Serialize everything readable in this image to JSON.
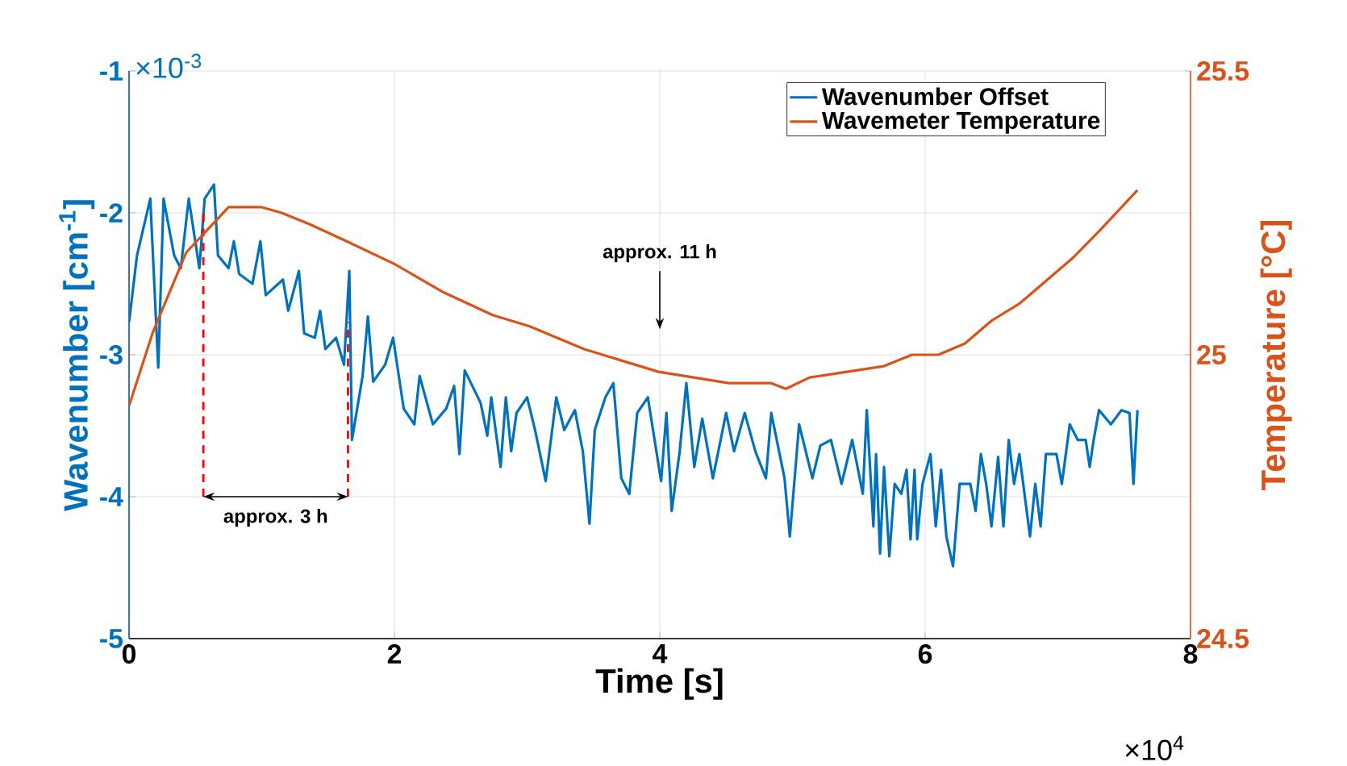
{
  "chart_data": {
    "type": "line",
    "xlabel": "Time [s]",
    "ylabel": "Wavenumber [cm$^{-1}$]",
    "y2label": "Temperature [°C]",
    "xlim": [
      0,
      8
    ],
    "xticks": [
      0,
      2,
      4,
      6,
      8
    ],
    "ylim": [
      -5,
      -1
    ],
    "yticks": [
      -5,
      -4,
      -3,
      -2,
      -1
    ],
    "y2lim": [
      24.5,
      25.5
    ],
    "y2ticks": [
      24.5,
      25,
      25.5
    ],
    "grid": true,
    "legend": "top right",
    "annotations": [
      "×10$^{-3}$",
      "×10$^{4}$",
      "approx. 11 h",
      "approx. 3 h"
    ],
    "series": [
      {
        "name": "Wavenumber Offset",
        "color": "#0072bd",
        "x": [
          0,
          0.06,
          0.16,
          0.22,
          0.26,
          0.34,
          0.39,
          0.45,
          0.53,
          0.57,
          0.64,
          0.67,
          0.75,
          0.79,
          0.83,
          0.93,
          0.99,
          1.03,
          1.16,
          1.2,
          1.28,
          1.32,
          1.4,
          1.44,
          1.48,
          1.56,
          1.62,
          1.66,
          1.68,
          1.76,
          1.8,
          1.84,
          1.93,
          1.99,
          2.07,
          2.15,
          2.19,
          2.29,
          2.39,
          2.45,
          2.49,
          2.53,
          2.65,
          2.7,
          2.73,
          2.8,
          2.84,
          2.88,
          2.92,
          3.0,
          3.06,
          3.14,
          3.22,
          3.28,
          3.36,
          3.42,
          3.47,
          3.51,
          3.59,
          3.65,
          3.71,
          3.77,
          3.83,
          3.91,
          4.01,
          4.05,
          4.09,
          4.15,
          4.2,
          4.26,
          4.32,
          4.4,
          4.5,
          4.56,
          4.64,
          4.72,
          4.8,
          4.84,
          4.94,
          4.98,
          5.05,
          5.15,
          5.21,
          5.29,
          5.37,
          5.45,
          5.53,
          5.56,
          5.61,
          5.63,
          5.66,
          5.69,
          5.73,
          5.77,
          5.82,
          5.86,
          5.89,
          5.92,
          5.94,
          5.98,
          6.04,
          6.08,
          6.12,
          6.16,
          6.21,
          6.26,
          6.34,
          6.38,
          6.42,
          6.46,
          6.5,
          6.55,
          6.59,
          6.63,
          6.67,
          6.71,
          6.79,
          6.83,
          6.87,
          6.91,
          6.99,
          7.03,
          7.09,
          7.15,
          7.21,
          7.24,
          7.27,
          7.31,
          7.4,
          7.48,
          7.54,
          7.57,
          7.6
        ],
        "values": [
          -2.77,
          -2.3,
          -1.9,
          -3.09,
          -1.9,
          -2.3,
          -2.39,
          -1.9,
          -2.39,
          -1.9,
          -1.8,
          -2.3,
          -2.39,
          -2.2,
          -2.43,
          -2.5,
          -2.2,
          -2.58,
          -2.47,
          -2.69,
          -2.41,
          -2.85,
          -2.88,
          -2.69,
          -2.96,
          -2.88,
          -3.07,
          -2.41,
          -3.6,
          -3.15,
          -2.73,
          -3.19,
          -3.07,
          -2.88,
          -3.38,
          -3.49,
          -3.15,
          -3.49,
          -3.38,
          -3.22,
          -3.7,
          -3.11,
          -3.34,
          -3.57,
          -3.3,
          -3.79,
          -3.3,
          -3.68,
          -3.41,
          -3.3,
          -3.53,
          -3.89,
          -3.3,
          -3.53,
          -3.39,
          -3.68,
          -4.19,
          -3.53,
          -3.3,
          -3.2,
          -3.87,
          -3.98,
          -3.41,
          -3.3,
          -3.89,
          -3.41,
          -4.1,
          -3.68,
          -3.2,
          -3.79,
          -3.45,
          -3.87,
          -3.41,
          -3.68,
          -3.41,
          -3.68,
          -3.87,
          -3.41,
          -3.87,
          -4.28,
          -3.49,
          -3.87,
          -3.64,
          -3.6,
          -3.91,
          -3.6,
          -3.98,
          -3.39,
          -4.21,
          -3.7,
          -4.4,
          -3.79,
          -4.42,
          -3.91,
          -3.98,
          -3.81,
          -4.3,
          -3.81,
          -4.3,
          -3.91,
          -3.7,
          -4.21,
          -3.81,
          -4.28,
          -4.49,
          -3.91,
          -3.91,
          -4.1,
          -3.7,
          -3.91,
          -4.21,
          -3.72,
          -4.21,
          -3.6,
          -3.91,
          -3.7,
          -4.28,
          -3.91,
          -4.21,
          -3.7,
          -3.7,
          -3.91,
          -3.49,
          -3.6,
          -3.6,
          -3.79,
          -3.6,
          -3.39,
          -3.49,
          -3.39,
          -3.41,
          -3.91,
          -3.39
        ]
      },
      {
        "name": "Wavemeter Temperature",
        "color": "#d95319",
        "axis": "y2",
        "x": [
          0,
          0.18,
          0.43,
          0.75,
          1.0,
          1.15,
          1.36,
          1.64,
          2.0,
          2.37,
          2.74,
          3.02,
          3.43,
          3.99,
          4.52,
          4.84,
          4.95,
          5.13,
          5.41,
          5.69,
          5.9,
          6.1,
          6.3,
          6.5,
          6.71,
          6.91,
          7.11,
          7.32,
          7.6
        ],
        "values": [
          24.91,
          25.04,
          25.18,
          25.26,
          25.26,
          25.25,
          25.23,
          25.2,
          25.16,
          25.11,
          25.07,
          25.05,
          25.01,
          24.97,
          24.95,
          24.95,
          24.94,
          24.96,
          24.97,
          24.98,
          25.0,
          25.0,
          25.02,
          25.06,
          25.09,
          25.13,
          25.17,
          25.22,
          25.29
        ]
      },
      {
        "type": "line",
        "color": "#ff0000",
        "line_style": "dashed",
        "x": [
          0.56,
          0.56
        ],
        "values": [
          -4,
          -1.99
        ]
      },
      {
        "type": "line",
        "color": "#ff0000",
        "line_style": "dashed",
        "x": [
          1.65,
          1.65
        ],
        "values": [
          -4,
          -2.77
        ]
      }
    ]
  }
}
